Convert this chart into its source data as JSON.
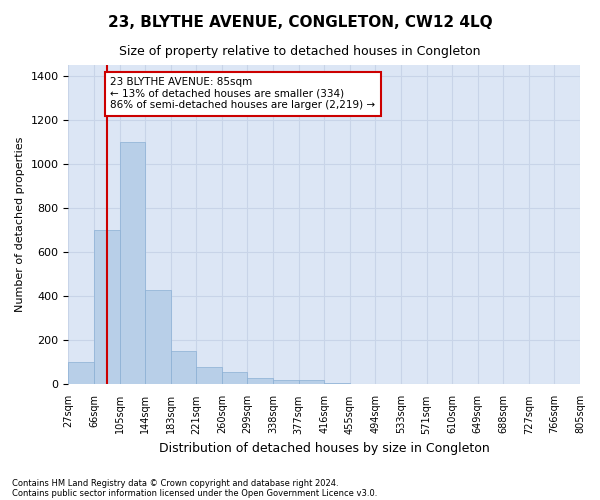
{
  "title": "23, BLYTHE AVENUE, CONGLETON, CW12 4LQ",
  "subtitle": "Size of property relative to detached houses in Congleton",
  "xlabel": "Distribution of detached houses by size in Congleton",
  "ylabel": "Number of detached properties",
  "footer_line1": "Contains HM Land Registry data © Crown copyright and database right 2024.",
  "footer_line2": "Contains public sector information licensed under the Open Government Licence v3.0.",
  "bin_labels": [
    "27sqm",
    "66sqm",
    "105sqm",
    "144sqm",
    "183sqm",
    "221sqm",
    "260sqm",
    "299sqm",
    "338sqm",
    "377sqm",
    "416sqm",
    "455sqm",
    "494sqm",
    "533sqm",
    "571sqm",
    "610sqm",
    "649sqm",
    "688sqm",
    "727sqm",
    "766sqm",
    "805sqm"
  ],
  "bar_values": [
    100,
    700,
    1100,
    430,
    150,
    80,
    55,
    30,
    20,
    20,
    5,
    2,
    0,
    0,
    0,
    0,
    0,
    0,
    0,
    0
  ],
  "bar_color": "#b8cfe8",
  "bar_edge_color": "#8aafd4",
  "grid_color": "#c8d4e8",
  "background_color": "#dce6f5",
  "property_label": "23 BLYTHE AVENUE: 85sqm",
  "annotation_line1": "← 13% of detached houses are smaller (334)",
  "annotation_line2": "86% of semi-detached houses are larger (2,219) →",
  "vline_color": "#cc0000",
  "annotation_box_color": "#cc0000",
  "ylim": [
    0,
    1450
  ],
  "yticks": [
    0,
    200,
    400,
    600,
    800,
    1000,
    1200,
    1400
  ],
  "vline_x": 1.49
}
